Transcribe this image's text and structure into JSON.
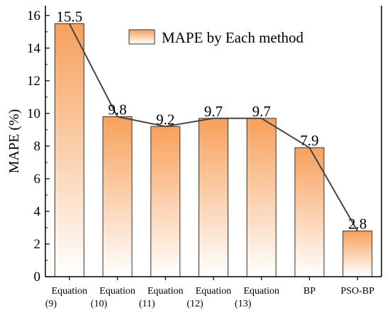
{
  "chart_data": {
    "type": "bar",
    "categories": [
      [
        "Equation",
        "(9)"
      ],
      [
        "Equation",
        "(10)"
      ],
      [
        "Equation",
        "(11)"
      ],
      [
        "Equation",
        "(12)"
      ],
      [
        "Equation",
        "(13)"
      ],
      [
        "BP"
      ],
      [
        "PSO-BP"
      ]
    ],
    "series": [
      {
        "name": "MAPE by Each method",
        "values": [
          15.5,
          9.8,
          9.2,
          9.7,
          9.7,
          7.9,
          2.8
        ]
      }
    ],
    "data_labels": [
      "15.5",
      "9.8",
      "9.2",
      "9.7",
      "9.7",
      "7.9",
      "2.8"
    ],
    "overlay_line": true,
    "title": "",
    "xlabel": "",
    "ylabel": "MAPE (%)",
    "ylim": [
      0,
      16.6
    ],
    "yticks": [
      0,
      2,
      4,
      6,
      8,
      10,
      12,
      14,
      16
    ],
    "grid": false,
    "legend_position": "top-right",
    "colors": {
      "bar_gradient_top": "#f7a05a",
      "bar_gradient_bottom": "#ffffff",
      "bar_stroke": "#333333",
      "line": "#454545",
      "axis": "#000000"
    }
  }
}
